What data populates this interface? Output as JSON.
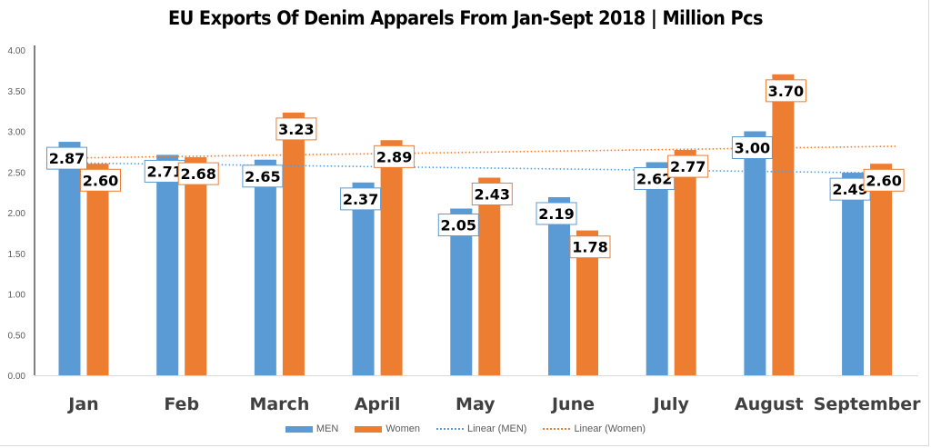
{
  "chart_data": {
    "type": "bar",
    "title": "EU Exports Of Denim Apparels From Jan-Sept 2018 | Million Pcs",
    "xlabel": "",
    "ylabel": "",
    "ylim": [
      0,
      4
    ],
    "yticks": [
      "0.00",
      "0.50",
      "1.00",
      "1.50",
      "2.00",
      "2.50",
      "3.00",
      "3.50",
      "4.00"
    ],
    "ytick_values": [
      0,
      0.5,
      1,
      1.5,
      2,
      2.5,
      3,
      3.5,
      4
    ],
    "grid": false,
    "legend_position": "bottom",
    "categories": [
      "Jan",
      "Feb",
      "March",
      "April",
      "May",
      "June",
      "July",
      "August",
      "September"
    ],
    "series": [
      {
        "name": "MEN",
        "color": "#5b9bd5",
        "values": [
          2.87,
          2.71,
          2.65,
          2.37,
          2.05,
          2.19,
          2.62,
          3.0,
          2.49
        ],
        "labels": [
          "2.87",
          "2.71",
          "2.65",
          "2.37",
          "2.05",
          "2.19",
          "2.62",
          "3.00",
          "2.49"
        ]
      },
      {
        "name": "Women",
        "color": "#ed7d31",
        "values": [
          2.6,
          2.68,
          3.23,
          2.89,
          2.43,
          1.78,
          2.77,
          3.7,
          2.6
        ],
        "labels": [
          "2.60",
          "2.68",
          "3.23",
          "2.89",
          "2.43",
          "1.78",
          "2.77",
          "3.70",
          "2.60"
        ]
      }
    ],
    "trendlines": [
      {
        "name": "Linear (MEN)",
        "of_series": "MEN",
        "type": "linear",
        "color": "#5b9bd5",
        "style": "dotted"
      },
      {
        "name": "Linear (Women)",
        "of_series": "Women",
        "type": "linear",
        "color": "#ed7d31",
        "style": "dotted"
      }
    ]
  },
  "legend": {
    "items": [
      {
        "label": "MEN",
        "kind": "bar",
        "color": "#5b9bd5"
      },
      {
        "label": "Women",
        "kind": "bar",
        "color": "#ed7d31"
      },
      {
        "label": "Linear (MEN)",
        "kind": "dotted",
        "color": "#5b9bd5"
      },
      {
        "label": "Linear (Women)",
        "kind": "dotted",
        "color": "#ed7d31"
      }
    ]
  }
}
